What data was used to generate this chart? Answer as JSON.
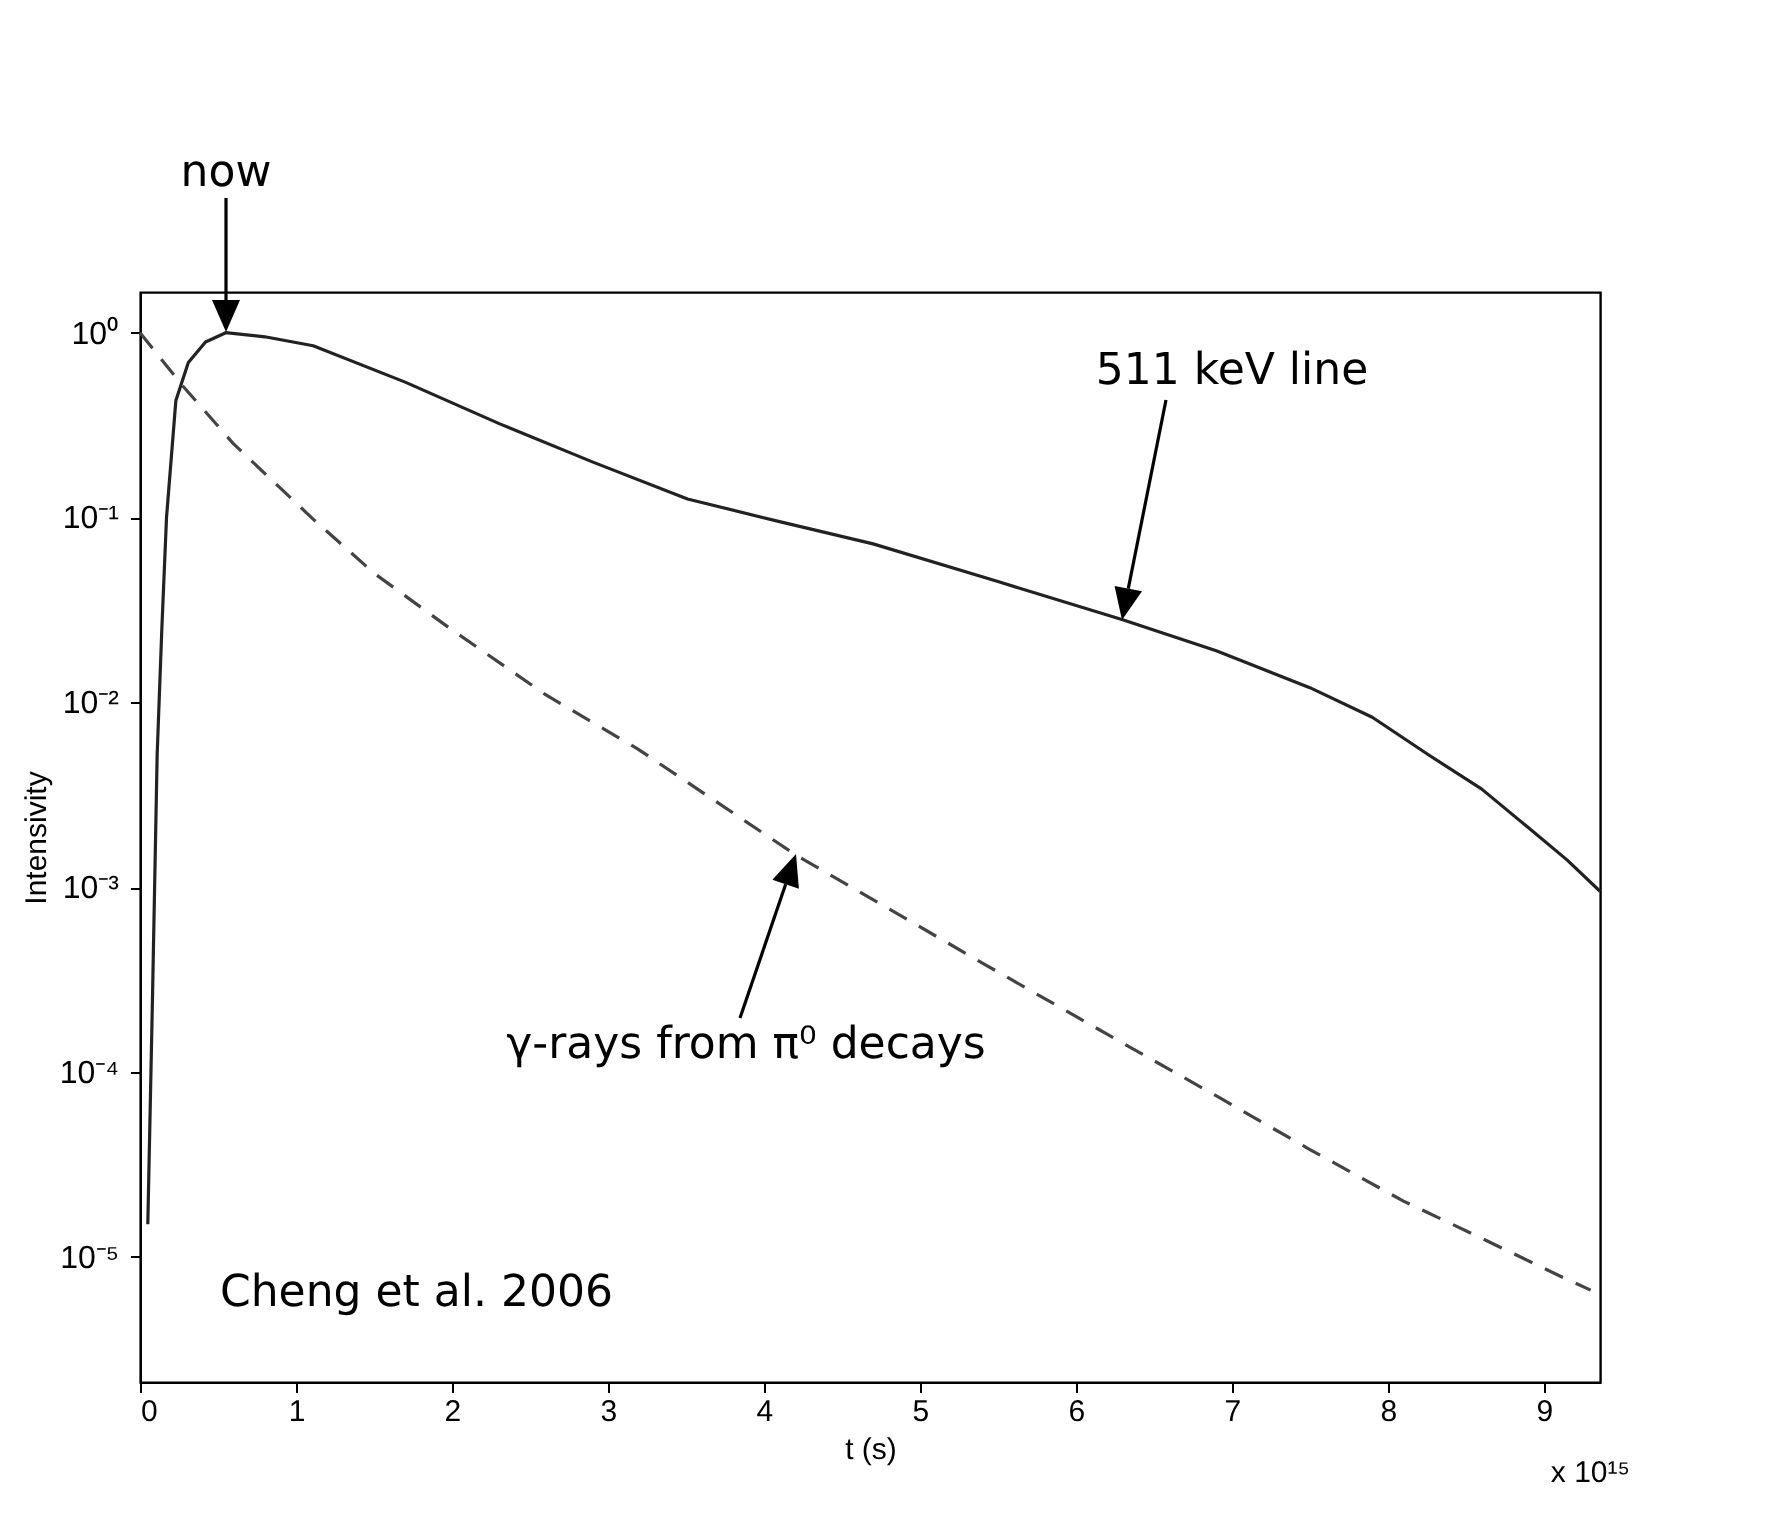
{
  "chart_data": {
    "type": "line",
    "xlabel": "t (s)",
    "ylabel": "Intensivity",
    "log": "y",
    "marker": "none",
    "xlim": [
      0,
      9.36
    ],
    "xticks": [
      0,
      1,
      2,
      3,
      4,
      5,
      6,
      7,
      8,
      9
    ],
    "ylim": [
      2.1e-06,
      1.66
    ],
    "yticks": [
      {
        "value": 1e-05,
        "label": "10⁻⁵"
      },
      {
        "value": 0.0001,
        "label": "10⁻⁴"
      },
      {
        "value": 0.001,
        "label": "10⁻³"
      },
      {
        "value": 0.01,
        "label": "10⁻²"
      },
      {
        "value": 0.1,
        "label": "10⁻¹"
      },
      {
        "value": 1,
        "label": "10⁰"
      }
    ],
    "series": [
      {
        "color": "#222222",
        "line_style": "solid",
        "x": [
          0.05,
          0.08,
          0.11,
          0.14,
          0.17,
          0.23,
          0.31,
          0.42,
          0.55,
          0.8,
          1.11,
          1.7,
          2.31,
          2.9,
          3.51,
          4.1,
          4.7,
          5.5,
          6.3,
          6.9,
          7.5,
          7.9,
          8.26,
          8.6,
          8.9,
          9.15,
          9.36
        ],
        "values": [
          1.5e-05,
          0.00025,
          0.0052,
          0.025,
          0.1,
          0.43,
          0.69,
          0.89,
          1.0,
          0.95,
          0.85,
          0.54,
          0.32,
          0.2,
          0.126,
          0.095,
          0.072,
          0.045,
          0.028,
          0.019,
          0.012,
          0.0083,
          0.0052,
          0.0034,
          0.0021,
          0.0014,
          0.00095
        ]
      },
      {
        "color": "#444444",
        "line_style": "dashed",
        "x": [
          0,
          0.27,
          0.6,
          1.11,
          1.5,
          1.99,
          2.6,
          3.19,
          4.2,
          5.42,
          6.2,
          6.94,
          7.5,
          8.1,
          8.6,
          9.14,
          9.3
        ],
        "values": [
          1.0,
          0.52,
          0.25,
          0.098,
          0.05,
          0.025,
          0.011,
          0.0056,
          0.0015,
          0.00038,
          0.00016,
          7.1e-05,
          3.8e-05,
          2e-05,
          1.26e-05,
          7.6e-06,
          6.6e-06
        ]
      }
    ],
    "annotations": [
      "now",
      "511 keV line",
      "γ-rays from π⁰ decays",
      "Cheng et al. 2006",
      "x 10¹⁵"
    ]
  }
}
